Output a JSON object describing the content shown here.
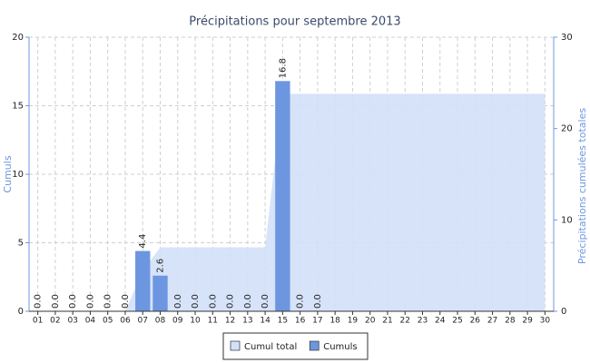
{
  "chart_data": {
    "type": "bar",
    "title": "Précipitations pour septembre 2013",
    "ylabel": "Cumuls",
    "y2label": "Précipitations cumulées totales",
    "categories": [
      "01",
      "02",
      "03",
      "04",
      "05",
      "06",
      "07",
      "08",
      "09",
      "10",
      "11",
      "12",
      "13",
      "14",
      "15",
      "16",
      "17",
      "18",
      "19",
      "20",
      "21",
      "22",
      "23",
      "24",
      "25",
      "26",
      "27",
      "28",
      "29",
      "30"
    ],
    "ylim": [
      0,
      20
    ],
    "yticks": [
      0,
      5,
      10,
      15,
      20
    ],
    "y2lim": [
      0,
      30
    ],
    "y2ticks": [
      0,
      10,
      20,
      30
    ],
    "grid": true,
    "legend": "bottom",
    "series": [
      {
        "name": "Cumul total",
        "type": "area",
        "axis": "y2",
        "color": "#d3e0f8",
        "values": [
          0,
          0,
          0,
          0,
          0,
          0,
          4.4,
          7,
          7,
          7,
          7,
          7,
          7,
          7,
          23.8,
          23.8,
          23.8,
          23.8,
          23.8,
          23.8,
          23.8,
          23.8,
          23.8,
          23.8,
          23.8,
          23.8,
          23.8,
          23.8,
          23.8,
          23.8
        ]
      },
      {
        "name": "Cumuls",
        "type": "bar",
        "color": "#6d96e0",
        "values": [
          0,
          0,
          0,
          0,
          0,
          0,
          4.4,
          2.6,
          0,
          0,
          0,
          0,
          0,
          0,
          16.8,
          0,
          0,
          null,
          null,
          null,
          null,
          null,
          null,
          null,
          null,
          null,
          null,
          null,
          null,
          null
        ],
        "value_labels": [
          "0.0",
          "0.0",
          "0.0",
          "0.0",
          "0.0",
          "0.0",
          "4.4",
          "2.6",
          "0.0",
          "0.0",
          "0.0",
          "0.0",
          "0.0",
          "0.0",
          "16.8",
          "0.0",
          "0.0",
          null,
          null,
          null,
          null,
          null,
          null,
          null,
          null,
          null,
          null,
          null,
          null,
          null
        ]
      }
    ]
  }
}
